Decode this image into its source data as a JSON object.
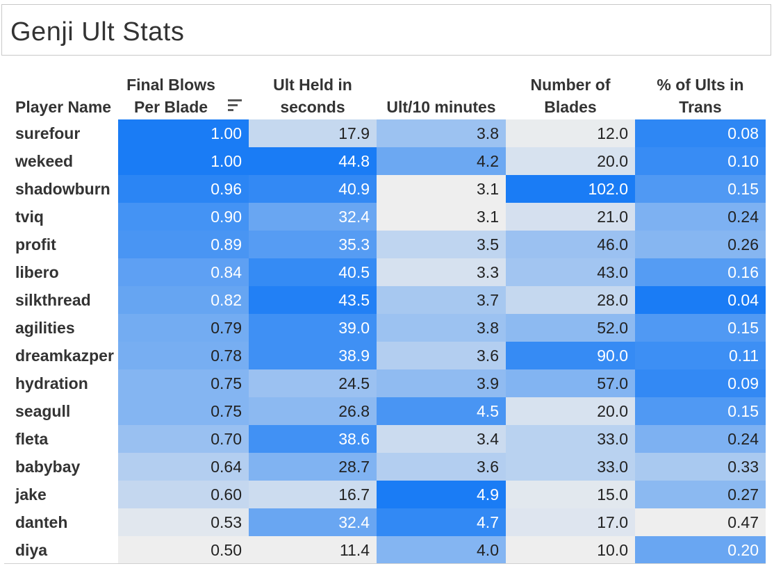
{
  "title": "Genji Ult Stats",
  "icons": {
    "sort": "sort-descending-icon"
  },
  "chart_data": {
    "type": "table",
    "title": "Genji Ult Stats",
    "columns": [
      {
        "key": "name",
        "label": "Player Name"
      },
      {
        "key": "fb",
        "label": "Final Blows Per Blade",
        "sorted": "descending"
      },
      {
        "key": "held",
        "label": "Ult Held in seconds"
      },
      {
        "key": "rate",
        "label": "Ult/10 minutes"
      },
      {
        "key": "blades",
        "label": "Number of Blades"
      },
      {
        "key": "trans",
        "label": "% of Ults in Trans"
      }
    ],
    "header_lines": {
      "name": [
        "Player Name"
      ],
      "fb": [
        "Final Blows",
        "Per Blade"
      ],
      "held": [
        "Ult Held in",
        "seconds"
      ],
      "rate": [
        "Ult/10 minutes"
      ],
      "blades": [
        "Number of",
        "Blades"
      ],
      "trans": [
        "% of Ults in",
        "Trans"
      ]
    },
    "rows": [
      {
        "name": "surefour",
        "fb": "1.00",
        "held": "17.9",
        "rate": "3.8",
        "blades": "12.0",
        "trans": "0.08"
      },
      {
        "name": "wekeed",
        "fb": "1.00",
        "held": "44.8",
        "rate": "4.2",
        "blades": "20.0",
        "trans": "0.10"
      },
      {
        "name": "shadowburn",
        "fb": "0.96",
        "held": "40.9",
        "rate": "3.1",
        "blades": "102.0",
        "trans": "0.15"
      },
      {
        "name": "tviq",
        "fb": "0.90",
        "held": "32.4",
        "rate": "3.1",
        "blades": "21.0",
        "trans": "0.24"
      },
      {
        "name": "profit",
        "fb": "0.89",
        "held": "35.3",
        "rate": "3.5",
        "blades": "46.0",
        "trans": "0.26"
      },
      {
        "name": "libero",
        "fb": "0.84",
        "held": "40.5",
        "rate": "3.3",
        "blades": "43.0",
        "trans": "0.16"
      },
      {
        "name": "silkthread",
        "fb": "0.82",
        "held": "43.5",
        "rate": "3.7",
        "blades": "28.0",
        "trans": "0.04"
      },
      {
        "name": "agilities",
        "fb": "0.79",
        "held": "39.0",
        "rate": "3.8",
        "blades": "52.0",
        "trans": "0.15"
      },
      {
        "name": "dreamkazper",
        "fb": "0.78",
        "held": "38.9",
        "rate": "3.6",
        "blades": "90.0",
        "trans": "0.11"
      },
      {
        "name": "hydration",
        "fb": "0.75",
        "held": "24.5",
        "rate": "3.9",
        "blades": "57.0",
        "trans": "0.09"
      },
      {
        "name": "seagull",
        "fb": "0.75",
        "held": "26.8",
        "rate": "4.5",
        "blades": "20.0",
        "trans": "0.15"
      },
      {
        "name": "fleta",
        "fb": "0.70",
        "held": "38.6",
        "rate": "3.4",
        "blades": "33.0",
        "trans": "0.24"
      },
      {
        "name": "babybay",
        "fb": "0.64",
        "held": "28.7",
        "rate": "3.6",
        "blades": "33.0",
        "trans": "0.33"
      },
      {
        "name": "jake",
        "fb": "0.60",
        "held": "16.7",
        "rate": "4.9",
        "blades": "15.0",
        "trans": "0.27"
      },
      {
        "name": "danteh",
        "fb": "0.53",
        "held": "32.4",
        "rate": "4.7",
        "blades": "17.0",
        "trans": "0.47"
      },
      {
        "name": "diya",
        "fb": "0.50",
        "held": "11.4",
        "rate": "4.0",
        "blades": "10.0",
        "trans": "0.20"
      }
    ],
    "color_scale": {
      "low": "#eeeeee",
      "high": "#1a7cf5",
      "text_light": "#ffffff",
      "text_dark": "#222222",
      "ranges": {
        "fb": [
          0.5,
          1.0
        ],
        "held": [
          11.4,
          44.8
        ],
        "rate": [
          3.1,
          4.9
        ],
        "blades": [
          10.0,
          102.0
        ],
        "trans": [
          0.47,
          0.04
        ]
      }
    }
  }
}
